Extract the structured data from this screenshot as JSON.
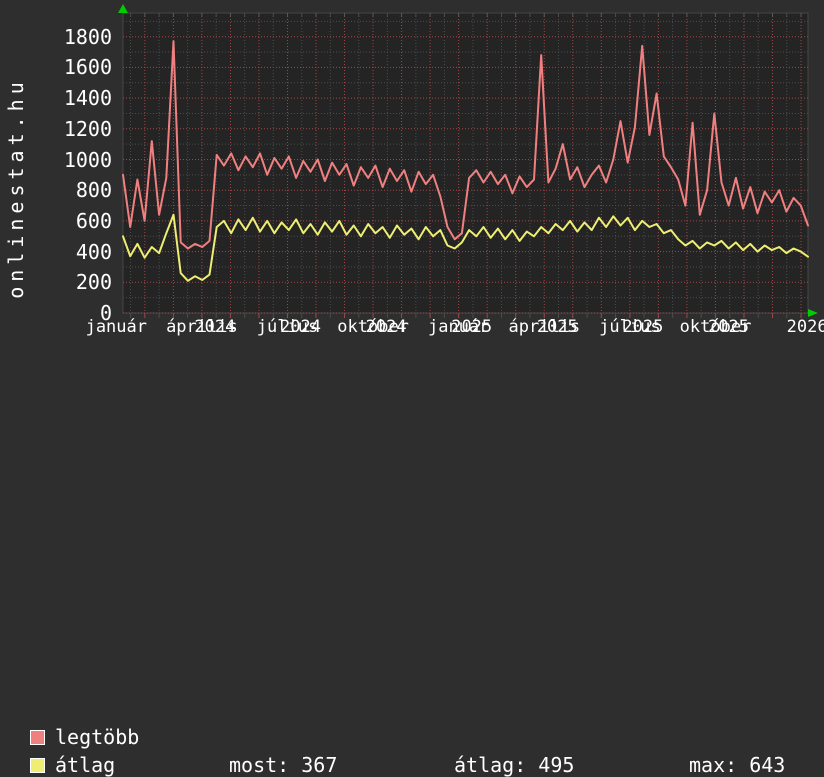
{
  "site_label": "onlinestat.hu",
  "colors": {
    "page_bg": "#2e2e2e",
    "plot_bg": "#242424",
    "grid_major_red": "#a34747",
    "grid_minor_gray": "#4c4c4c",
    "axis_text": "#ffffff",
    "series_most": "#f08080",
    "series_avg": "#eeee72",
    "arrow_green": "#00cc00",
    "plot_border": "#454545"
  },
  "legend": {
    "items": [
      {
        "label": "legtöbb",
        "color": "#f08080"
      },
      {
        "label": "átlag",
        "color": "#eeee72"
      }
    ]
  },
  "stats": [
    {
      "label": "most:",
      "value": "367"
    },
    {
      "label": "átlag:",
      "value": "495"
    },
    {
      "label": "max:",
      "value": "643"
    }
  ],
  "chart_data": {
    "type": "line",
    "title": "",
    "xlabel": "",
    "ylabel": "",
    "x_range_months": "január 2024 – december 2025",
    "ylim": [
      0,
      1950
    ],
    "y_major_ticks": [
      0,
      200,
      400,
      600,
      800,
      1000,
      1200,
      1400,
      1600,
      1800
    ],
    "y_minor_step": 100,
    "x_major_step_months": 1,
    "x_minor_step_months": 0.5,
    "grid": "on",
    "legend_position": "bottom-left",
    "x_tick_labels": [
      {
        "month": "január",
        "year": ""
      },
      {
        "month": "április",
        "year": "2024"
      },
      {
        "month": "július",
        "year": "2024"
      },
      {
        "month": "október",
        "year": "2024"
      },
      {
        "month": "január",
        "year": "2025"
      },
      {
        "month": "április",
        "year": "2025"
      },
      {
        "month": "július",
        "year": "2025"
      },
      {
        "month": "október",
        "year": "2025"
      },
      {
        "month": "",
        "year": "2026"
      }
    ],
    "series": [
      {
        "name": "legtöbb",
        "color": "#f08080",
        "values": [
          900,
          560,
          870,
          600,
          1120,
          640,
          880,
          1770,
          460,
          420,
          450,
          430,
          470,
          1030,
          960,
          1040,
          930,
          1020,
          950,
          1040,
          900,
          1010,
          940,
          1020,
          880,
          990,
          920,
          1000,
          860,
          980,
          900,
          970,
          830,
          950,
          880,
          960,
          820,
          940,
          860,
          930,
          790,
          920,
          840,
          900,
          760,
          560,
          480,
          520,
          880,
          930,
          850,
          920,
          840,
          900,
          780,
          890,
          820,
          870,
          1680,
          850,
          940,
          1100,
          870,
          950,
          820,
          900,
          960,
          850,
          1000,
          1250,
          980,
          1210,
          1740,
          1160,
          1430,
          1020,
          950,
          870,
          700,
          1240,
          640,
          800,
          1300,
          850,
          700,
          880,
          680,
          820,
          650,
          790,
          720,
          800,
          660,
          750,
          700,
          570
        ]
      },
      {
        "name": "átlag",
        "color": "#eeee72",
        "values": [
          500,
          370,
          450,
          360,
          430,
          390,
          520,
          640,
          260,
          210,
          240,
          215,
          250,
          560,
          600,
          520,
          610,
          540,
          620,
          530,
          600,
          520,
          590,
          540,
          610,
          520,
          580,
          510,
          590,
          530,
          600,
          510,
          570,
          500,
          580,
          520,
          560,
          490,
          570,
          510,
          550,
          480,
          560,
          500,
          540,
          440,
          420,
          460,
          540,
          500,
          560,
          490,
          550,
          480,
          540,
          470,
          530,
          500,
          560,
          520,
          580,
          540,
          600,
          530,
          590,
          540,
          620,
          560,
          630,
          570,
          620,
          540,
          600,
          560,
          580,
          520,
          540,
          480,
          440,
          470,
          420,
          460,
          440,
          470,
          420,
          460,
          410,
          450,
          400,
          440,
          410,
          430,
          390,
          420,
          400,
          367
        ]
      }
    ],
    "summary": {
      "most": 367,
      "atlag": 495,
      "max": 643
    }
  }
}
